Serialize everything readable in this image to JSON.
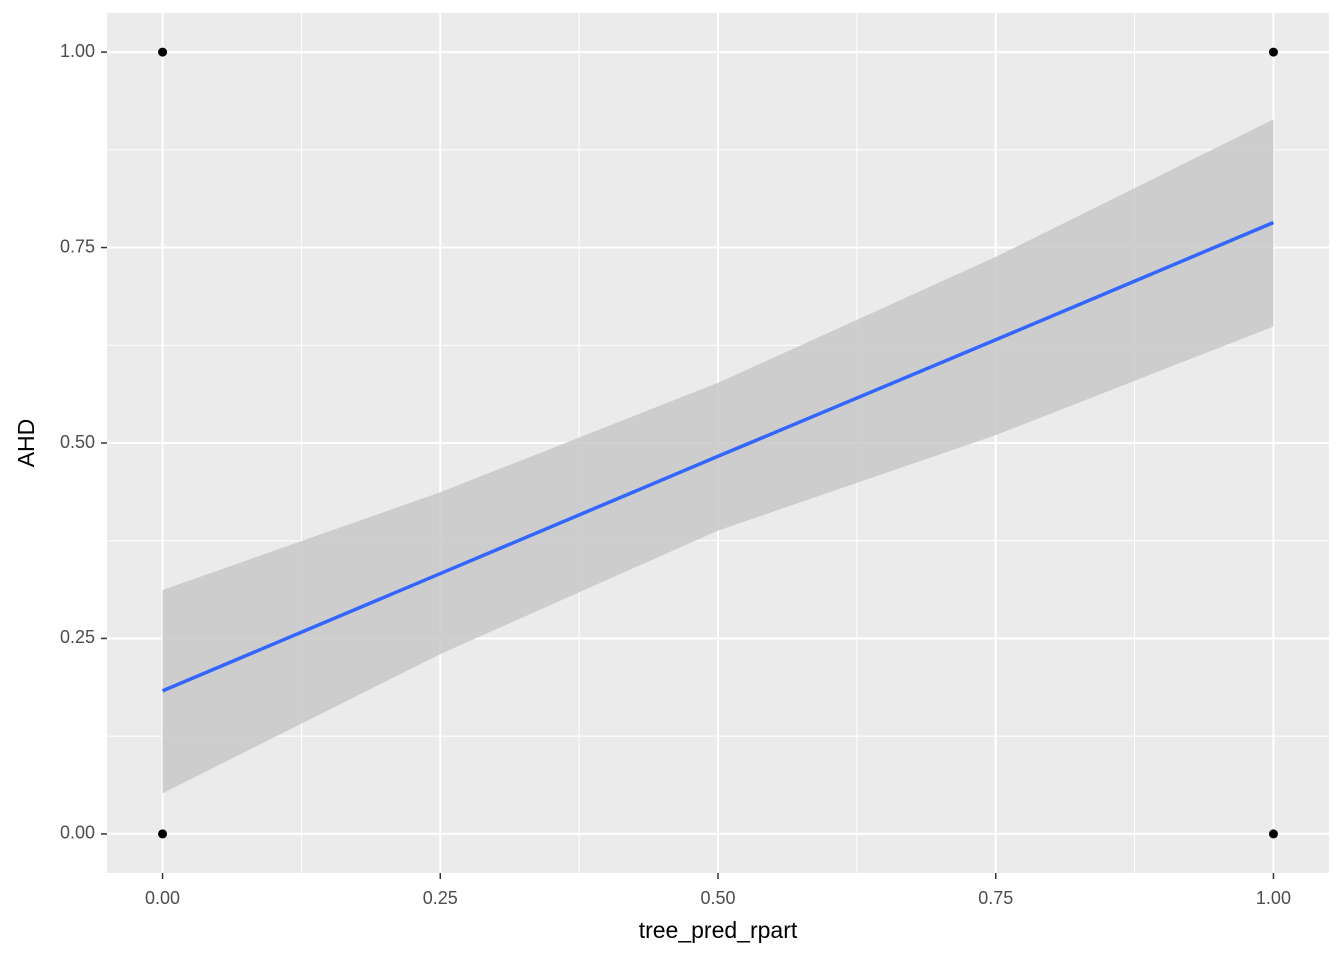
{
  "chart_data": {
    "type": "scatter",
    "x_label": "tree_pred_rpart",
    "y_label": "AHD",
    "x": [
      0,
      0,
      1,
      1
    ],
    "values": [
      0,
      1,
      0,
      1
    ],
    "color": "#000000",
    "smooth": {
      "x": [
        0,
        0.25,
        0.5,
        0.75,
        1
      ],
      "values": [
        0.183,
        0.333,
        0.483,
        0.632,
        0.782
      ],
      "upper": [
        0.312,
        0.437,
        0.577,
        0.738,
        0.914
      ],
      "lower": [
        0.052,
        0.23,
        0.388,
        0.51,
        0.649
      ],
      "color": "#3366ff",
      "band_color": "#c8c8c8"
    },
    "xlim": [
      -0.05,
      1.05
    ],
    "ylim": [
      -0.05,
      1.05
    ],
    "xticks": [
      {
        "value": 0,
        "label": "0.00"
      },
      {
        "value": 0.25,
        "label": "0.25"
      },
      {
        "value": 0.5,
        "label": "0.50"
      },
      {
        "value": 0.75,
        "label": "0.75"
      },
      {
        "value": 1,
        "label": "1.00"
      }
    ],
    "yticks": [
      {
        "value": 0,
        "label": "0.00"
      },
      {
        "value": 0.25,
        "label": "0.25"
      },
      {
        "value": 0.5,
        "label": "0.50"
      },
      {
        "value": 0.75,
        "label": "0.75"
      },
      {
        "value": 1,
        "label": "1.00"
      }
    ],
    "grid": true
  }
}
